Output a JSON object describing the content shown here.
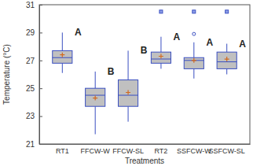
{
  "chart_data": {
    "type": "box",
    "x_label": "Treatments",
    "y_label": "Temperature (°C)",
    "categories": [
      "RT1",
      "FFCW-W",
      "FFCW-SL",
      "RT2",
      "SSFCW-W",
      "SSFCW-SL"
    ],
    "boxes": [
      {
        "min": 26.1,
        "q1": 26.8,
        "median": 27.2,
        "q3": 27.7,
        "max": 29.0,
        "mean": 27.4,
        "outliers": [],
        "far_outliers": []
      },
      {
        "min": 21.7,
        "q1": 23.7,
        "median": 24.5,
        "q3": 25.0,
        "max": 26.2,
        "mean": 24.3,
        "outliers": [],
        "far_outliers": []
      },
      {
        "min": 22.6,
        "q1": 23.7,
        "median": 24.5,
        "q3": 25.6,
        "max": 27.7,
        "mean": 24.7,
        "outliers": [],
        "far_outliers": []
      },
      {
        "min": 26.4,
        "q1": 26.8,
        "median": 27.1,
        "q3": 27.6,
        "max": 28.7,
        "mean": 27.3,
        "outliers": [],
        "far_outliers": [
          30.5
        ]
      },
      {
        "min": 25.7,
        "q1": 26.4,
        "median": 27.0,
        "q3": 27.2,
        "max": 28.3,
        "mean": 27.0,
        "outliers": [
          28.9
        ],
        "far_outliers": [
          30.5
        ]
      },
      {
        "min": 26.0,
        "q1": 26.4,
        "median": 26.9,
        "q3": 27.6,
        "max": 28.2,
        "mean": 27.1,
        "outliers": [],
        "far_outliers": [
          30.5
        ]
      }
    ],
    "annotations": [
      "A",
      "B",
      "B",
      "A",
      "A",
      "A"
    ],
    "color": "#c0c0c0",
    "ylim": [
      21,
      31
    ],
    "yticks": [
      21,
      23,
      25,
      27,
      29,
      31
    ],
    "grid": false
  }
}
